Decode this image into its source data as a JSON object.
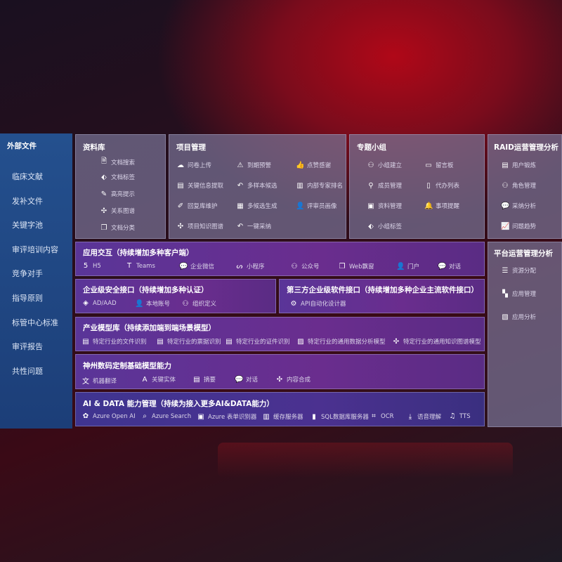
{
  "sidebar": {
    "title": "外部文件",
    "items": [
      "临床文献",
      "发补文件",
      "关键字池",
      "审评培训内容",
      "竞争对手",
      "指导原则",
      "标管中心标准",
      "审评报告",
      "共性问题"
    ]
  },
  "library": {
    "title": "资料库",
    "items": [
      {
        "icon": "doc-search-icon",
        "label": "文档搜索"
      },
      {
        "icon": "tag-icon",
        "label": "文档标签"
      },
      {
        "icon": "pen-icon",
        "label": "高亮提示"
      },
      {
        "icon": "graph-icon",
        "label": "关系图谱"
      },
      {
        "icon": "doc-classify-icon",
        "label": "文档分类"
      }
    ]
  },
  "project": {
    "title": "项目管理",
    "items": [
      {
        "icon": "cloud-upload-icon",
        "label": "问卷上传"
      },
      {
        "icon": "alarm-icon",
        "label": "到期预警"
      },
      {
        "icon": "thumbs-up-icon",
        "label": "点赞感谢"
      },
      {
        "icon": "extract-icon",
        "label": "关键信息提取"
      },
      {
        "icon": "reply-icon",
        "label": "多样本候选"
      },
      {
        "icon": "ranking-icon",
        "label": "内部专家排名"
      },
      {
        "icon": "edit-icon",
        "label": "回复库维护"
      },
      {
        "icon": "puzzle-icon",
        "label": "多候选生成"
      },
      {
        "icon": "user-icon",
        "label": "评审员画像"
      },
      {
        "icon": "graph-icon",
        "label": "项目知识图谱"
      },
      {
        "icon": "reply-icon",
        "label": "一键采纳"
      }
    ]
  },
  "group": {
    "title": "专题小组",
    "items": [
      {
        "icon": "group-icon",
        "label": "小组建立"
      },
      {
        "icon": "bbs-icon",
        "label": "留言板"
      },
      {
        "icon": "add-user-icon",
        "label": "成员管理"
      },
      {
        "icon": "clipboard-icon",
        "label": "代办列表"
      },
      {
        "icon": "folder-icon",
        "label": "资料管理"
      },
      {
        "icon": "bell-icon",
        "label": "事项提醒"
      },
      {
        "icon": "tag-icon",
        "label": "小组标签"
      }
    ]
  },
  "raid": {
    "title": "RAID运营管理分析",
    "items": [
      {
        "icon": "id-card-icon",
        "label": "用户锻炼"
      },
      {
        "icon": "users-icon",
        "label": "角色管理"
      },
      {
        "icon": "qa-icon",
        "label": "采纳分析"
      },
      {
        "icon": "trend-icon",
        "label": "问题趋势"
      }
    ]
  },
  "platform": {
    "title": "平台运营管理分析",
    "items": [
      {
        "icon": "list-icon",
        "label": "资源分配"
      },
      {
        "icon": "apps-icon",
        "label": "应用管理"
      },
      {
        "icon": "analysis-icon",
        "label": "应用分析"
      }
    ]
  },
  "app": {
    "title": "应用交互（持续增加多种客户端）",
    "items": [
      {
        "icon": "html5-icon",
        "label": "H5"
      },
      {
        "icon": "teams-icon",
        "label": "Teams"
      },
      {
        "icon": "wechat-icon",
        "label": "企业微信"
      },
      {
        "icon": "miniprogram-icon",
        "label": "小程序"
      },
      {
        "icon": "official-account-icon",
        "label": "公众号"
      },
      {
        "icon": "window-icon",
        "label": "Web飘窗"
      },
      {
        "icon": "portal-icon",
        "label": "门户"
      },
      {
        "icon": "chat-icon",
        "label": "对话"
      }
    ]
  },
  "security": {
    "title": "企业级安全接口（持续增加多种认证）",
    "items": [
      {
        "icon": "aad-icon",
        "label": "AD/AAD"
      },
      {
        "icon": "account-icon",
        "label": "本地账号"
      },
      {
        "icon": "org-icon",
        "label": "组织定义"
      }
    ]
  },
  "thirdparty": {
    "title": "第三方企业级软件接口（持续增加多种企业主流软件接口）",
    "items": [
      {
        "icon": "gear-icon",
        "label": "API自动化设计器"
      }
    ]
  },
  "industry": {
    "title": "产业模型库（持续添加端到端场景模型）",
    "items": [
      {
        "icon": "file-icon",
        "label": "特定行业的文件识别"
      },
      {
        "icon": "receipt-icon",
        "label": "特定行业的票据识别"
      },
      {
        "icon": "id-card-icon",
        "label": "特定行业的证件识别"
      },
      {
        "icon": "chart-icon",
        "label": "特定行业的通用数据分析模型"
      },
      {
        "icon": "graph-icon",
        "label": "特定行业的通用知识图谱模型"
      }
    ]
  },
  "base": {
    "title": "神州数码定制基础模型能力",
    "items": [
      {
        "icon": "translate-icon",
        "label": "机器翻译"
      },
      {
        "icon": "entity-icon",
        "label": "关键实体"
      },
      {
        "icon": "summary-icon",
        "label": "摘要"
      },
      {
        "icon": "chat-icon",
        "label": "对话"
      },
      {
        "icon": "compose-icon",
        "label": "内容合成"
      }
    ]
  },
  "aidata": {
    "title": "AI & DATA 能力管理（持续为接入更多AI&DATA能力）",
    "items": [
      {
        "icon": "openai-icon",
        "label": "Azure Open AI"
      },
      {
        "icon": "search-icon",
        "label": "Azure Search"
      },
      {
        "icon": "form-icon",
        "label": "Azure 表单识别器"
      },
      {
        "icon": "cache-icon",
        "label": "缓存服务器"
      },
      {
        "icon": "sql-icon",
        "label": "SQL数据库服务器"
      },
      {
        "icon": "ocr-icon",
        "label": "OCR"
      },
      {
        "icon": "speech-icon",
        "label": "语音理解"
      },
      {
        "icon": "tts-icon",
        "label": "TTS"
      }
    ]
  }
}
